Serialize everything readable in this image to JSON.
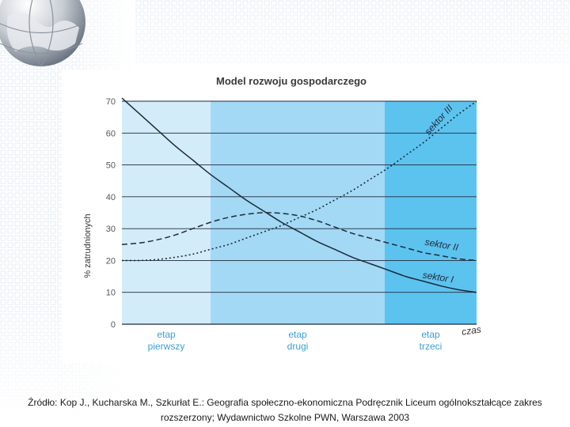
{
  "chart_data": {
    "type": "line",
    "title": "Model rozwoju gospodarczego",
    "ylabel": "% zatrudnionych",
    "xlabel": "czas",
    "ylim": [
      0,
      70
    ],
    "yticks": [
      0,
      10,
      20,
      30,
      40,
      50,
      60,
      70
    ],
    "stages": [
      {
        "label_line1": "etap",
        "label_line2": "pierwszy",
        "color": "#d3ecf9"
      },
      {
        "label_line1": "etap",
        "label_line2": "drugi",
        "color": "#a3d9f5"
      },
      {
        "label_line1": "etap",
        "label_line2": "trzeci",
        "color": "#5cc3ef"
      }
    ],
    "x": [
      0,
      5,
      10,
      15,
      20,
      25,
      30,
      35,
      40,
      45,
      50,
      55,
      60,
      65,
      70,
      75,
      80,
      85,
      90,
      95,
      100
    ],
    "series": [
      {
        "name": "sektor I",
        "style": "solid",
        "values": [
          71,
          66,
          61,
          56,
          51.5,
          47,
          43,
          39,
          35.5,
          32,
          29,
          26,
          23.5,
          21,
          19,
          17,
          15,
          13.5,
          12,
          10.8,
          10
        ]
      },
      {
        "name": "sektor II",
        "style": "dashed",
        "values": [
          25,
          25.5,
          26.5,
          28,
          30,
          32,
          33.5,
          34.5,
          35,
          34.8,
          34,
          32.5,
          30.5,
          28.5,
          27,
          25.5,
          24,
          22.5,
          21.5,
          20.5,
          20
        ]
      },
      {
        "name": "sektor III",
        "style": "dotted",
        "values": [
          20,
          20,
          20.3,
          21,
          22,
          23.5,
          25,
          27,
          29,
          31,
          33.5,
          36,
          39,
          42,
          45.5,
          49,
          53,
          57,
          61.5,
          66,
          70
        ]
      }
    ]
  },
  "caption": {
    "line1": "Źródło: Kop J., Kucharska M., Szkurłat E.: Geografia społeczno-ekonomiczna Podręcznik Liceum ogólnokształcące zakres",
    "line2": "rozszerzony; Wydawnictwo Szkolne PWN, Warszawa 2003"
  },
  "colors": {
    "line": "#1e2a3a",
    "grid": "#1e2a3a",
    "stage_label": "#3a9fd6",
    "title": "#3a3a3a"
  },
  "decor": {
    "globe_icon": "globe-icon"
  }
}
